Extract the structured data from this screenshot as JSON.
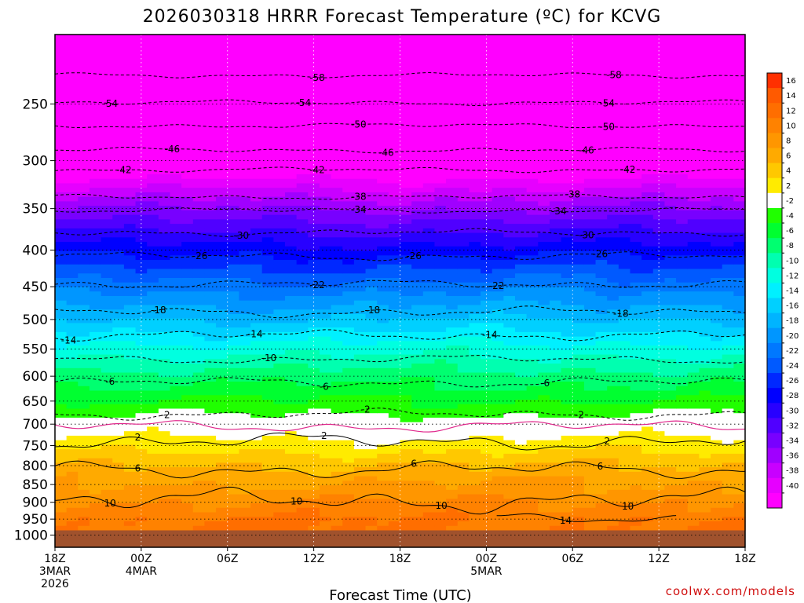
{
  "chart_data": {
    "type": "heatmap",
    "title": "2026030318 HRRR Forecast Temperature (ºC) for KCVG",
    "xlabel": "Forecast Time (UTC)",
    "ylabel": "",
    "credit": "coolwx.com/models",
    "y_axis": {
      "scale": "log-pressure",
      "unit": "hPa",
      "range": [
        1040,
        200
      ],
      "ticks": [
        250,
        300,
        350,
        400,
        450,
        500,
        550,
        600,
        650,
        700,
        750,
        800,
        850,
        900,
        950,
        1000
      ],
      "grid": "dotted"
    },
    "x_axis": {
      "range": [
        "2026-03-03T18:00Z",
        "2026-03-05T18:00Z"
      ],
      "ticks": [
        {
          "time": "2026-03-03T18:00Z",
          "lines": [
            "18Z",
            "3MAR",
            "2026"
          ]
        },
        {
          "time": "2026-03-04T00:00Z",
          "lines": [
            "00Z",
            "4MAR"
          ]
        },
        {
          "time": "2026-03-04T06:00Z",
          "lines": [
            "06Z"
          ]
        },
        {
          "time": "2026-03-04T12:00Z",
          "lines": [
            "12Z"
          ]
        },
        {
          "time": "2026-03-04T18:00Z",
          "lines": [
            "18Z"
          ]
        },
        {
          "time": "2026-03-05T00:00Z",
          "lines": [
            "00Z",
            "5MAR"
          ]
        },
        {
          "time": "2026-03-05T06:00Z",
          "lines": [
            "06Z"
          ]
        },
        {
          "time": "2026-03-05T12:00Z",
          "lines": [
            "12Z"
          ]
        },
        {
          "time": "2026-03-05T18:00Z",
          "lines": [
            "18Z"
          ]
        }
      ],
      "grid": "dotted"
    },
    "ground_level_hPa": 985,
    "profile_anchors": [
      {
        "hPa": 985,
        "temp": 12
      },
      {
        "hPa": 950,
        "temp": 12
      },
      {
        "hPa": 900,
        "temp": 10
      },
      {
        "hPa": 850,
        "temp": 8
      },
      {
        "hPa": 800,
        "temp": 6
      },
      {
        "hPa": 750,
        "temp": 3
      },
      {
        "hPa": 700,
        "temp": 0
      },
      {
        "hPa": 680,
        "temp": -2
      },
      {
        "hPa": 650,
        "temp": -4
      },
      {
        "hPa": 600,
        "temp": -7
      },
      {
        "hPa": 550,
        "temp": -11
      },
      {
        "hPa": 500,
        "temp": -16
      },
      {
        "hPa": 450,
        "temp": -21
      },
      {
        "hPa": 400,
        "temp": -27
      },
      {
        "hPa": 350,
        "temp": -34
      },
      {
        "hPa": 300,
        "temp": -44
      },
      {
        "hPa": 250,
        "temp": -54
      },
      {
        "hPa": 200,
        "temp": -62
      }
    ],
    "contour_levels": [
      {
        "level": 14,
        "label": "14",
        "style": "solid",
        "color": "#000000",
        "hPa": 945,
        "amp": 6,
        "lx": [
          0.74
        ]
      },
      {
        "level": 10,
        "label": "10",
        "style": "solid",
        "color": "#000000",
        "hPa": 895,
        "amp": 14,
        "lx": [
          0.08,
          0.35,
          0.56,
          0.83
        ]
      },
      {
        "level": 6,
        "label": "6",
        "style": "solid",
        "color": "#000000",
        "hPa": 810,
        "amp": 10,
        "lx": [
          0.12,
          0.52,
          0.79
        ]
      },
      {
        "level": 2,
        "label": "2",
        "style": "solid",
        "color": "#000000",
        "hPa": 740,
        "amp": 10,
        "lx": [
          0.12,
          0.39,
          0.8
        ]
      },
      {
        "level": 0,
        "label": "",
        "style": "solid",
        "color": "#e0288c",
        "hPa": 705,
        "amp": 7,
        "lx": []
      },
      {
        "level": -2,
        "label": "-2",
        "style": "dashed",
        "color": "#000000",
        "hPa": 678,
        "amp": 6,
        "lx": [
          0.16,
          0.45,
          0.76
        ]
      },
      {
        "level": -6,
        "label": "-6",
        "style": "dashed",
        "color": "#000000",
        "hPa": 612,
        "amp": 6,
        "lx": [
          0.08,
          0.39,
          0.71
        ]
      },
      {
        "level": -10,
        "label": "-10",
        "style": "dashed",
        "color": "#000000",
        "hPa": 568,
        "amp": 5,
        "lx": [
          0.31
        ]
      },
      {
        "level": -14,
        "label": "-14",
        "style": "dashed",
        "color": "#000000",
        "hPa": 526,
        "amp": 6,
        "lx": [
          0.02,
          0.29,
          0.63
        ]
      },
      {
        "level": -18,
        "label": "-18",
        "style": "dashed",
        "color": "#000000",
        "hPa": 488,
        "amp": 6,
        "lx": [
          0.15,
          0.46,
          0.82
        ]
      },
      {
        "level": -22,
        "label": "-22",
        "style": "dashed",
        "color": "#000000",
        "hPa": 446,
        "amp": 5,
        "lx": [
          0.38,
          0.64
        ]
      },
      {
        "level": -26,
        "label": "-26",
        "style": "dashed",
        "color": "#000000",
        "hPa": 408,
        "amp": 5,
        "lx": [
          0.21,
          0.52,
          0.79
        ]
      },
      {
        "level": -30,
        "label": "-30",
        "style": "dashed",
        "color": "#000000",
        "hPa": 378,
        "amp": 4,
        "lx": [
          0.27,
          0.77
        ]
      },
      {
        "level": -34,
        "label": "-34",
        "style": "dashed",
        "color": "#000000",
        "hPa": 352,
        "amp": 3,
        "lx": [
          0.44,
          0.73
        ]
      },
      {
        "level": -38,
        "label": "-38",
        "style": "dashed",
        "color": "#000000",
        "hPa": 337,
        "amp": 3,
        "lx": [
          0.44,
          0.75
        ]
      },
      {
        "level": -42,
        "label": "-42",
        "style": "dashed",
        "color": "#000000",
        "hPa": 309,
        "amp": 3,
        "lx": [
          0.1,
          0.38,
          0.83
        ]
      },
      {
        "level": -46,
        "label": "-46",
        "style": "dashed",
        "color": "#000000",
        "hPa": 290,
        "amp": 3,
        "lx": [
          0.17,
          0.48,
          0.77
        ]
      },
      {
        "level": -50,
        "label": "-50",
        "style": "dashed",
        "color": "#000000",
        "hPa": 268,
        "amp": 3,
        "lx": [
          0.44,
          0.8
        ]
      },
      {
        "level": -54,
        "label": "-54",
        "style": "dashed",
        "color": "#000000",
        "hPa": 249,
        "amp": 3,
        "lx": [
          0.08,
          0.36,
          0.8
        ]
      },
      {
        "level": -58,
        "label": "-58",
        "style": "dashed",
        "color": "#000000",
        "hPa": 228,
        "amp": 3,
        "lx": [
          0.38,
          0.81
        ]
      }
    ],
    "colorbar": {
      "bins": [
        {
          "lo": 16,
          "hi": 18,
          "color": "#ff3000"
        },
        {
          "lo": 14,
          "hi": 16,
          "color": "#ff5a00"
        },
        {
          "lo": 12,
          "hi": 14,
          "color": "#ff6e00"
        },
        {
          "lo": 10,
          "hi": 12,
          "color": "#ff8200"
        },
        {
          "lo": 8,
          "hi": 10,
          "color": "#ff9600"
        },
        {
          "lo": 6,
          "hi": 8,
          "color": "#ffaa00"
        },
        {
          "lo": 4,
          "hi": 6,
          "color": "#ffc800"
        },
        {
          "lo": 2,
          "hi": 4,
          "color": "#ffeb00"
        },
        {
          "lo": -2,
          "hi": 2,
          "color": "#ffffff"
        },
        {
          "lo": -4,
          "hi": -2,
          "color": "#20ff00"
        },
        {
          "lo": -6,
          "hi": -4,
          "color": "#00ff30"
        },
        {
          "lo": -8,
          "hi": -6,
          "color": "#00ff70"
        },
        {
          "lo": -10,
          "hi": -8,
          "color": "#00ffb0"
        },
        {
          "lo": -12,
          "hi": -10,
          "color": "#00ffe0"
        },
        {
          "lo": -14,
          "hi": -12,
          "color": "#00f0ff"
        },
        {
          "lo": -16,
          "hi": -14,
          "color": "#00d0ff"
        },
        {
          "lo": -18,
          "hi": -16,
          "color": "#00b4ff"
        },
        {
          "lo": -20,
          "hi": -18,
          "color": "#0096ff"
        },
        {
          "lo": -22,
          "hi": -20,
          "color": "#0078ff"
        },
        {
          "lo": -24,
          "hi": -22,
          "color": "#005aff"
        },
        {
          "lo": -26,
          "hi": -24,
          "color": "#0028ff"
        },
        {
          "lo": -28,
          "hi": -26,
          "color": "#0000ff"
        },
        {
          "lo": -30,
          "hi": -28,
          "color": "#2800ff"
        },
        {
          "lo": -32,
          "hi": -30,
          "color": "#5000ff"
        },
        {
          "lo": -34,
          "hi": -32,
          "color": "#7800ff"
        },
        {
          "lo": -36,
          "hi": -34,
          "color": "#a000ff"
        },
        {
          "lo": -38,
          "hi": -36,
          "color": "#c800ff"
        },
        {
          "lo": -40,
          "hi": -38,
          "color": "#e600ff"
        },
        {
          "lo": -70,
          "hi": -40,
          "color": "#ff00ff"
        }
      ],
      "tick_labels": [
        "16",
        "14",
        "12",
        "10",
        "8",
        "6",
        "4",
        "2",
        "-2",
        "-4",
        "-6",
        "-8",
        "-10",
        "-12",
        "-14",
        "-16",
        "-18",
        "-20",
        "-22",
        "-24",
        "-26",
        "-28",
        "-30",
        "-32",
        "-34",
        "-36",
        "-38",
        "-40"
      ]
    },
    "colors": {
      "ground": "#a0522d",
      "freezing_line": "#e0288c"
    }
  }
}
